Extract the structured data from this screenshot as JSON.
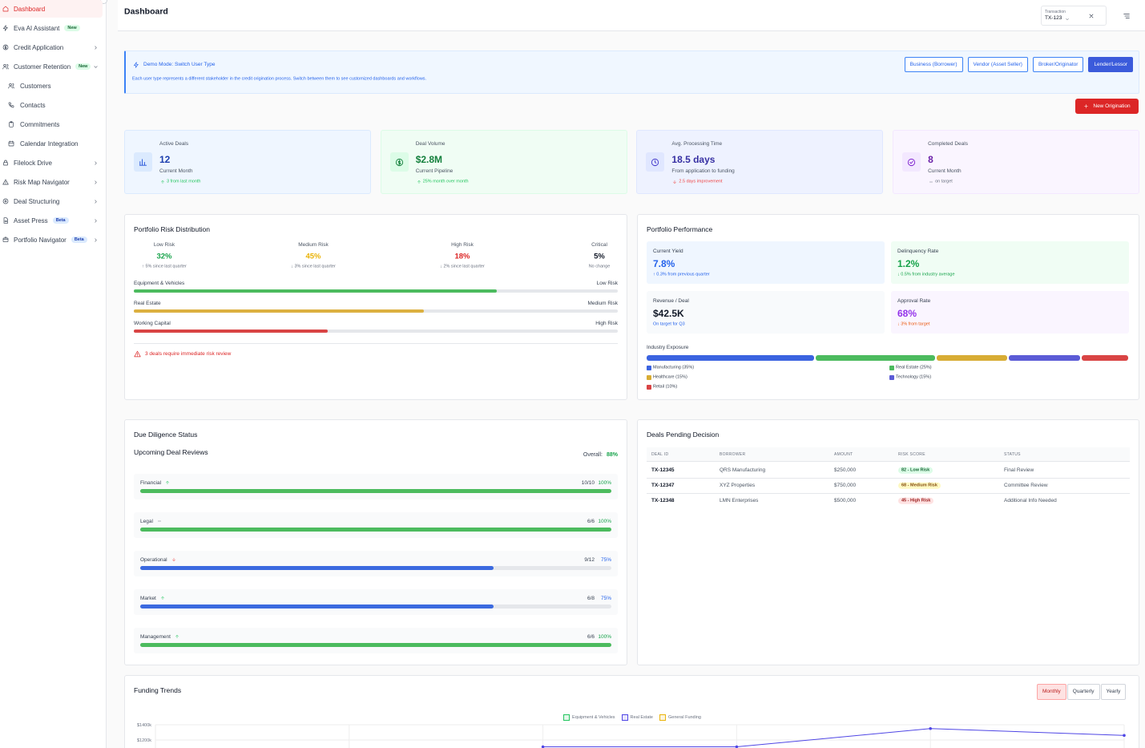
{
  "sidebar": {
    "items": [
      {
        "label": "Dashboard",
        "active": true
      },
      {
        "label": "Eva AI Assistant",
        "badge": "New"
      },
      {
        "label": "Credit Application",
        "chevron": "right"
      },
      {
        "label": "Customer Retention",
        "badge": "New",
        "chevron": "down"
      },
      {
        "label": "Customers",
        "sub": true
      },
      {
        "label": "Contacts",
        "sub": true
      },
      {
        "label": "Commitments",
        "sub": true
      },
      {
        "label": "Calendar Integration",
        "sub": true
      },
      {
        "label": "Filelock Drive",
        "chevron": "right"
      },
      {
        "label": "Risk Map Navigator",
        "chevron": "right"
      },
      {
        "label": "Deal Structuring",
        "chevron": "right"
      },
      {
        "label": "Asset Press",
        "badge": "Beta",
        "chevron": "right"
      },
      {
        "label": "Portfolio Navigator",
        "badge": "Beta",
        "chevron": "right"
      }
    ]
  },
  "header": {
    "title": "Dashboard",
    "transaction_label": "Transaction",
    "transaction_value": "TX-123"
  },
  "demo": {
    "title": "Demo Mode: Switch User Type",
    "description": "Each user type represents a different stakeholder in the credit origination process. Switch between them to see customized dashboards and workflows.",
    "buttons": [
      "Business (Borrower)",
      "Vendor (Asset Seller)",
      "Broker/Originator",
      "Lender/Lessor"
    ],
    "active_button": 3
  },
  "new_button": "New Origination",
  "stats": [
    {
      "title": "Active Deals",
      "value": "12",
      "subtitle": "Current Month",
      "change": "3 from last month",
      "trend": "up"
    },
    {
      "title": "Deal Volume",
      "value": "$2.8M",
      "subtitle": "Current Pipeline",
      "change": "25% month over month",
      "trend": "up"
    },
    {
      "title": "Avg. Processing Time",
      "value": "18.5 days",
      "subtitle": "From application to funding",
      "change": "2.5 days improvement",
      "trend": "down"
    },
    {
      "title": "Completed Deals",
      "value": "8",
      "subtitle": "Current Month",
      "change": "on target",
      "trend": "flat"
    }
  ],
  "risk": {
    "title": "Portfolio Risk Distribution",
    "levels": [
      {
        "name": "Low Risk",
        "value": "32%",
        "change": "↑ 5% since last quarter"
      },
      {
        "name": "Medium Risk",
        "value": "45%",
        "change": "↓ 3% since last quarter"
      },
      {
        "name": "High Risk",
        "value": "18%",
        "change": "↓ 2% since last quarter"
      },
      {
        "name": "Critical",
        "value": "5%",
        "change": "No change"
      }
    ],
    "bars": [
      {
        "name": "Equipment & Vehicles",
        "level": "Low Risk",
        "progress": 75
      },
      {
        "name": "Real Estate",
        "level": "Medium Risk",
        "progress": 60
      },
      {
        "name": "Working Capital",
        "level": "High Risk",
        "progress": 40
      }
    ],
    "alert": "3 deals require immediate risk review"
  },
  "performance": {
    "title": "Portfolio Performance",
    "tiles": [
      {
        "label": "Current Yield",
        "value": "7.8%",
        "note": "↑ 0.3% from previous quarter"
      },
      {
        "label": "Delinquency Rate",
        "value": "1.2%",
        "note": "↓ 0.5% from industry average"
      },
      {
        "label": "Revenue / Deal",
        "value": "$42.5K",
        "note": "On target for Q3"
      },
      {
        "label": "Approval Rate",
        "value": "68%",
        "note": "↓ 3% from target"
      }
    ],
    "exposure_title": "Industry Exposure",
    "exposure": [
      {
        "label": "Manufacturing (35%)",
        "value": 35
      },
      {
        "label": "Real Estate (25%)",
        "value": 25
      },
      {
        "label": "Healthcare (15%)",
        "value": 15
      },
      {
        "label": "Technology (15%)",
        "value": 15
      },
      {
        "label": "Retail (10%)",
        "value": 10
      }
    ]
  },
  "diligence": {
    "title": "Due Diligence Status",
    "subtitle": "Upcoming Deal Reviews",
    "overall_label": "Overall:",
    "overall": "88%",
    "items": [
      {
        "name": "Financial",
        "trend": "up",
        "count": "10/10",
        "percent": 100,
        "percent_label": "100%"
      },
      {
        "name": "Legal",
        "trend": "flat",
        "count": "6/6",
        "percent": 100,
        "percent_label": "100%"
      },
      {
        "name": "Operational",
        "trend": "down",
        "count": "9/12",
        "percent": 75,
        "percent_label": "75%"
      },
      {
        "name": "Market",
        "trend": "up",
        "count": "6/8",
        "percent": 75,
        "percent_label": "75%"
      },
      {
        "name": "Management",
        "trend": "up",
        "count": "6/6",
        "percent": 100,
        "percent_label": "100%"
      }
    ]
  },
  "pending": {
    "title": "Deals Pending Decision",
    "columns": [
      "DEAL ID",
      "BORROWER",
      "AMOUNT",
      "RISK SCORE",
      "STATUS"
    ],
    "rows": [
      [
        "TX-12345",
        "QRS Manufacturing",
        "$250,000",
        "82 - Low Risk",
        "Final Review"
      ],
      [
        "TX-12347",
        "XYZ Properties",
        "$750,000",
        "68 - Medium Risk",
        "Committee Review"
      ],
      [
        "TX-12348",
        "LMN Enterprises",
        "$500,000",
        "45 - High Risk",
        "Additional Info Needed"
      ]
    ]
  },
  "funding": {
    "title": "Funding Trends",
    "buttons": [
      "Monthly",
      "Quarterly",
      "Yearly"
    ],
    "active_button": 0,
    "chart_data": {
      "type": "line",
      "categories": [
        null,
        null,
        null,
        null,
        null,
        null
      ],
      "series": [
        {
          "name": "Equipment & Vehicles",
          "color": "#22c55e",
          "values": [
            null,
            null,
            null,
            null,
            null,
            null
          ]
        },
        {
          "name": "Real Estate",
          "color": "#4f46e5",
          "values": [
            null,
            null,
            1110,
            1110,
            1350,
            1260
          ]
        },
        {
          "name": "General Funding",
          "color": "#eab308",
          "values": [
            null,
            null,
            null,
            null,
            null,
            null
          ]
        }
      ],
      "ylim": [
        0,
        1400
      ],
      "yticks": [
        {
          "value": 1400,
          "label": "$1400k"
        },
        {
          "value": 1200,
          "label": "$1200k"
        }
      ],
      "grid": true
    }
  }
}
